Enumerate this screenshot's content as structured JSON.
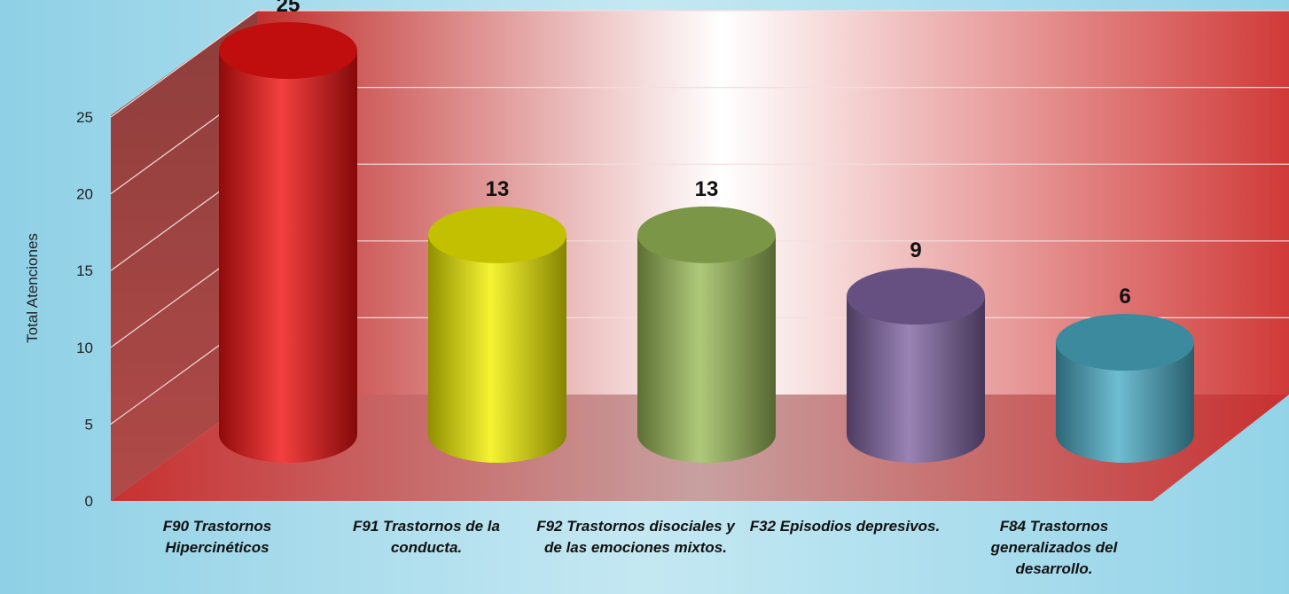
{
  "chart_data": {
    "type": "bar",
    "y_label": "Total Atenciones",
    "categories": [
      "F90 Trastornos Hipercinéticos",
      "F91 Trastornos de la conducta.",
      "F92 Trastornos disociales y de las emociones mixtos.",
      "F32 Episodios depresivos.",
      "F84 Trastornos generalizados del desarrollo."
    ],
    "values": [
      25,
      13,
      13,
      9,
      6
    ],
    "colors": [
      "#f01010",
      "#f2f000",
      "#9bbb59",
      "#8064a2",
      "#4bacc6"
    ],
    "ylim": [
      0,
      25
    ],
    "yticks": [
      0,
      5,
      10,
      15,
      20,
      25
    ],
    "grid": true
  }
}
